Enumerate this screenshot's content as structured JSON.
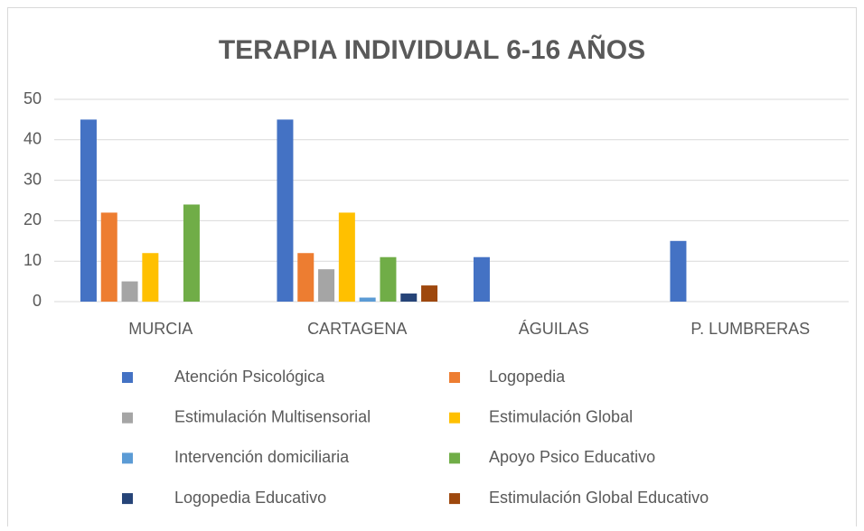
{
  "chart_data": {
    "type": "bar",
    "title": "TERAPIA INDIVIDUAL 6-16 AÑOS",
    "categories": [
      "MURCIA",
      "CARTAGENA",
      "ÁGUILAS",
      "P. LUMBRERAS"
    ],
    "series": [
      {
        "name": "Atención Psicológica",
        "color": "#4472c4",
        "values": [
          45,
          45,
          11,
          15
        ]
      },
      {
        "name": "Logopedia",
        "color": "#ed7d31",
        "values": [
          22,
          12,
          null,
          null
        ]
      },
      {
        "name": "Estimulación Multisensorial",
        "color": "#a5a5a5",
        "values": [
          5,
          8,
          null,
          null
        ]
      },
      {
        "name": "Estimulación Global",
        "color": "#ffc000",
        "values": [
          12,
          22,
          null,
          null
        ]
      },
      {
        "name": "Intervención domiciliaria",
        "color": "#5b9bd5",
        "values": [
          null,
          1,
          null,
          null
        ]
      },
      {
        "name": "Apoyo Psico Educativo",
        "color": "#70ad47",
        "values": [
          24,
          11,
          null,
          null
        ]
      },
      {
        "name": "Logopedia Educativo",
        "color": "#264478",
        "values": [
          null,
          2,
          null,
          null
        ]
      },
      {
        "name": "Estimulación Global Educativo",
        "color": "#9e480e",
        "values": [
          null,
          4,
          null,
          null
        ]
      }
    ],
    "ylim": [
      0,
      50
    ],
    "yticks": [
      0,
      10,
      20,
      30,
      40,
      50
    ],
    "grid": true,
    "legend": "bottom"
  }
}
